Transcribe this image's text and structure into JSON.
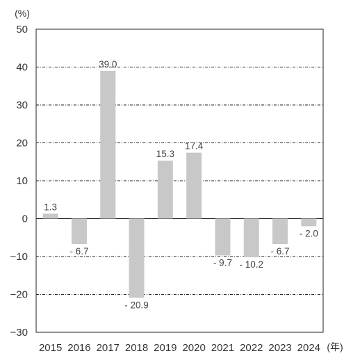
{
  "chart_data": {
    "type": "bar",
    "categories": [
      "2015",
      "2016",
      "2017",
      "2018",
      "2019",
      "2020",
      "2021",
      "2022",
      "2023",
      "2024"
    ],
    "values": [
      1.3,
      -6.7,
      39.0,
      -20.9,
      15.3,
      17.4,
      -9.7,
      -10.2,
      -6.7,
      -2.0
    ],
    "data_labels": [
      "1.3",
      "- 6.7",
      "39.0",
      "- 20.9",
      "15.3",
      "17.4",
      "- 9.7",
      "- 10.2",
      "- 6.7",
      "- 2.0"
    ],
    "y_ticks": [
      50,
      40,
      30,
      20,
      10,
      0,
      -10,
      -20,
      -30
    ],
    "y_tick_labels": [
      "50",
      "40",
      "30",
      "20",
      "10",
      "0",
      "−10",
      "−20",
      "−30"
    ],
    "ylim": [
      -30,
      50
    ],
    "y_unit": "(%)",
    "x_unit": "(年)",
    "title": "",
    "xlabel": "",
    "ylabel": "",
    "grid": "horizontal dash-dot lines",
    "bar_color": "#c8c8c8",
    "grid_color": "#222222",
    "axis_color": "#222222"
  }
}
